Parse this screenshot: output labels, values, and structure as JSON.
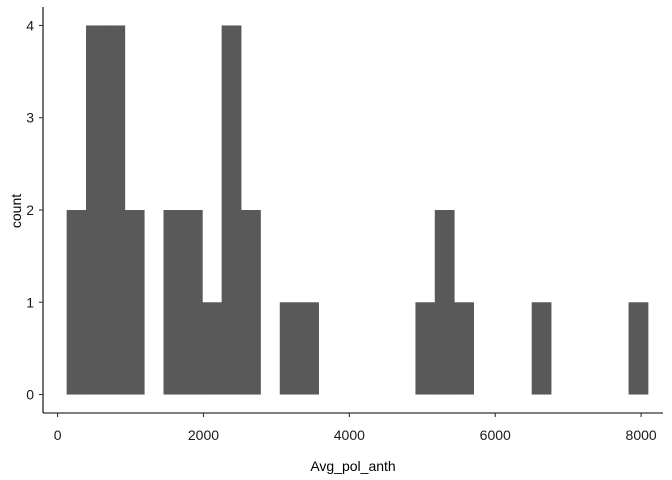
{
  "chart_data": {
    "type": "bar",
    "xlabel": "Avg_pol_anth",
    "ylabel": "count",
    "xlim": [
      -200,
      8300
    ],
    "ylim": [
      -0.2,
      4.2
    ],
    "x_ticks": [
      0,
      2000,
      4000,
      6000,
      8000
    ],
    "y_ticks": [
      0,
      1,
      2,
      3,
      4
    ],
    "bar_color": "#595959",
    "bins": [
      {
        "x0": 124,
        "x1": 390,
        "count": 2
      },
      {
        "x0": 390,
        "x1": 655,
        "count": 4
      },
      {
        "x0": 655,
        "x1": 921,
        "count": 4
      },
      {
        "x0": 921,
        "x1": 1187,
        "count": 2
      },
      {
        "x0": 1187,
        "x1": 1452,
        "count": 0
      },
      {
        "x0": 1452,
        "x1": 1718,
        "count": 2
      },
      {
        "x0": 1718,
        "x1": 1984,
        "count": 2
      },
      {
        "x0": 1984,
        "x1": 2249,
        "count": 1
      },
      {
        "x0": 2249,
        "x1": 2515,
        "count": 4
      },
      {
        "x0": 2515,
        "x1": 2781,
        "count": 2
      },
      {
        "x0": 2781,
        "x1": 3046,
        "count": 0
      },
      {
        "x0": 3046,
        "x1": 3312,
        "count": 1
      },
      {
        "x0": 3312,
        "x1": 3578,
        "count": 1
      },
      {
        "x0": 3578,
        "x1": 3843,
        "count": 0
      },
      {
        "x0": 3843,
        "x1": 4109,
        "count": 0
      },
      {
        "x0": 4109,
        "x1": 4375,
        "count": 0
      },
      {
        "x0": 4375,
        "x1": 4640,
        "count": 0
      },
      {
        "x0": 4640,
        "x1": 4906,
        "count": 0
      },
      {
        "x0": 4906,
        "x1": 5171,
        "count": 1
      },
      {
        "x0": 5171,
        "x1": 5437,
        "count": 2
      },
      {
        "x0": 5437,
        "x1": 5703,
        "count": 1
      },
      {
        "x0": 5703,
        "x1": 5968,
        "count": 0
      },
      {
        "x0": 5968,
        "x1": 6234,
        "count": 0
      },
      {
        "x0": 6234,
        "x1": 6500,
        "count": 0
      },
      {
        "x0": 6500,
        "x1": 6765,
        "count": 1
      },
      {
        "x0": 6765,
        "x1": 7031,
        "count": 0
      },
      {
        "x0": 7031,
        "x1": 7297,
        "count": 0
      },
      {
        "x0": 7297,
        "x1": 7562,
        "count": 0
      },
      {
        "x0": 7562,
        "x1": 7828,
        "count": 0
      },
      {
        "x0": 7828,
        "x1": 8094,
        "count": 1
      }
    ]
  }
}
